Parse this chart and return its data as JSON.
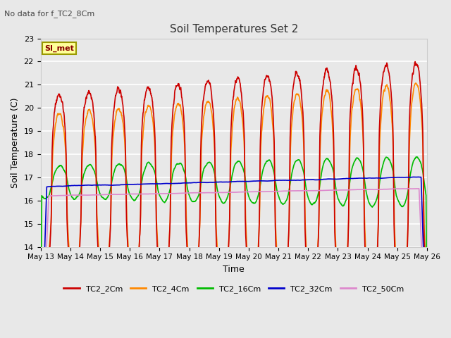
{
  "title": "Soil Temperatures Set 2",
  "subtitle": "No data for f_TC2_8Cm",
  "xlabel": "Time",
  "ylabel": "Soil Temperature (C)",
  "ylim": [
    14.0,
    23.0
  ],
  "yticks": [
    14.0,
    15.0,
    16.0,
    17.0,
    18.0,
    19.0,
    20.0,
    21.0,
    22.0,
    23.0
  ],
  "xtick_labels": [
    "May 13",
    "May 14",
    "May 15",
    "May 16",
    "May 17",
    "May 18",
    "May 19",
    "May 20",
    "May 21",
    "May 22",
    "May 23",
    "May 24",
    "May 25",
    "May 26"
  ],
  "fig_bg_color": "#e8e8e8",
  "plot_bg_color": "#e8e8e8",
  "grid_color": "#ffffff",
  "series": {
    "TC2_2Cm": {
      "color": "#cc0000",
      "lw": 1.2
    },
    "TC2_4Cm": {
      "color": "#ff8800",
      "lw": 1.2
    },
    "TC2_16Cm": {
      "color": "#00bb00",
      "lw": 1.2
    },
    "TC2_32Cm": {
      "color": "#0000cc",
      "lw": 1.2
    },
    "TC2_50Cm": {
      "color": "#dd88cc",
      "lw": 1.2
    }
  },
  "annotation_box": {
    "text": "SI_met",
    "facecolor": "#ffff99",
    "edgecolor": "#999900",
    "textcolor": "#880000",
    "fontsize": 8
  }
}
